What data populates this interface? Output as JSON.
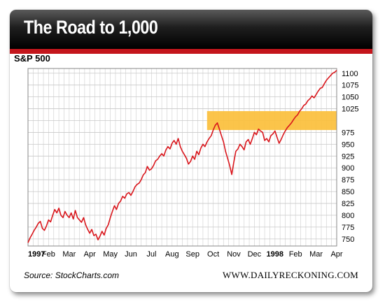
{
  "header": {
    "title": "The Road to 1,000"
  },
  "footer": {
    "source": "Source: StockCharts.com",
    "brand": "WWW.DAILYRECKONING.COM"
  },
  "colors": {
    "line": "#d9161c",
    "highlight": "#fbbf3b",
    "header_rule": "#c4161c"
  },
  "chart_data": {
    "type": "line",
    "title": "S&P 500",
    "xlabel": "",
    "ylabel": "",
    "ylim": [
      735,
      1110
    ],
    "grid": true,
    "x_tick_labels": [
      {
        "label": "1997",
        "t": 0,
        "bold": true
      },
      {
        "label": "Feb",
        "t": 1
      },
      {
        "label": "Mar",
        "t": 2
      },
      {
        "label": "Apr",
        "t": 3
      },
      {
        "label": "May",
        "t": 4
      },
      {
        "label": "Jun",
        "t": 5
      },
      {
        "label": "Jul",
        "t": 6
      },
      {
        "label": "Aug",
        "t": 7
      },
      {
        "label": "Sep",
        "t": 8
      },
      {
        "label": "Oct",
        "t": 9
      },
      {
        "label": "Nov",
        "t": 10
      },
      {
        "label": "Dec",
        "t": 11
      },
      {
        "label": "1998",
        "t": 12,
        "bold": true
      },
      {
        "label": "Feb",
        "t": 13
      },
      {
        "label": "Mar",
        "t": 14
      },
      {
        "label": "Apr",
        "t": 15
      }
    ],
    "y_ticks": [
      750,
      775,
      800,
      825,
      850,
      875,
      900,
      925,
      950,
      975,
      1000,
      1025,
      1050,
      1075,
      1100
    ],
    "y_tick_labels": [
      "750",
      "775",
      "800",
      "825",
      "850",
      "875",
      "900",
      "925",
      "950",
      "975",
      "",
      "1025",
      "1050",
      "1075",
      "1100"
    ],
    "highlight_band": {
      "t_start": 8.7,
      "y_low": 980,
      "y_high": 1020
    },
    "series": [
      {
        "points": [
          [
            0.0,
            742
          ],
          [
            0.1,
            752
          ],
          [
            0.2,
            760
          ],
          [
            0.3,
            768
          ],
          [
            0.4,
            775
          ],
          [
            0.5,
            783
          ],
          [
            0.6,
            787
          ],
          [
            0.7,
            772
          ],
          [
            0.8,
            768
          ],
          [
            0.9,
            778
          ],
          [
            1.0,
            790
          ],
          [
            1.1,
            786
          ],
          [
            1.2,
            800
          ],
          [
            1.3,
            812
          ],
          [
            1.4,
            805
          ],
          [
            1.5,
            815
          ],
          [
            1.6,
            800
          ],
          [
            1.7,
            795
          ],
          [
            1.8,
            808
          ],
          [
            1.9,
            800
          ],
          [
            2.0,
            795
          ],
          [
            2.1,
            805
          ],
          [
            2.2,
            792
          ],
          [
            2.3,
            810
          ],
          [
            2.4,
            795
          ],
          [
            2.5,
            790
          ],
          [
            2.6,
            785
          ],
          [
            2.7,
            795
          ],
          [
            2.8,
            780
          ],
          [
            2.9,
            770
          ],
          [
            3.0,
            762
          ],
          [
            3.1,
            770
          ],
          [
            3.2,
            757
          ],
          [
            3.3,
            760
          ],
          [
            3.4,
            748
          ],
          [
            3.5,
            756
          ],
          [
            3.6,
            766
          ],
          [
            3.7,
            758
          ],
          [
            3.8,
            772
          ],
          [
            3.9,
            780
          ],
          [
            4.0,
            795
          ],
          [
            4.1,
            808
          ],
          [
            4.2,
            820
          ],
          [
            4.3,
            812
          ],
          [
            4.4,
            825
          ],
          [
            4.5,
            830
          ],
          [
            4.6,
            840
          ],
          [
            4.7,
            836
          ],
          [
            4.8,
            845
          ],
          [
            4.9,
            848
          ],
          [
            5.0,
            842
          ],
          [
            5.1,
            850
          ],
          [
            5.2,
            860
          ],
          [
            5.3,
            865
          ],
          [
            5.4,
            868
          ],
          [
            5.5,
            875
          ],
          [
            5.6,
            885
          ],
          [
            5.7,
            890
          ],
          [
            5.8,
            903
          ],
          [
            5.9,
            895
          ],
          [
            6.0,
            898
          ],
          [
            6.1,
            905
          ],
          [
            6.2,
            915
          ],
          [
            6.3,
            918
          ],
          [
            6.4,
            925
          ],
          [
            6.5,
            930
          ],
          [
            6.6,
            925
          ],
          [
            6.7,
            938
          ],
          [
            6.8,
            945
          ],
          [
            6.9,
            940
          ],
          [
            7.0,
            952
          ],
          [
            7.1,
            958
          ],
          [
            7.2,
            950
          ],
          [
            7.3,
            962
          ],
          [
            7.4,
            945
          ],
          [
            7.5,
            935
          ],
          [
            7.6,
            928
          ],
          [
            7.7,
            920
          ],
          [
            7.8,
            908
          ],
          [
            7.9,
            914
          ],
          [
            8.0,
            925
          ],
          [
            8.1,
            918
          ],
          [
            8.2,
            935
          ],
          [
            8.3,
            928
          ],
          [
            8.4,
            942
          ],
          [
            8.5,
            950
          ],
          [
            8.6,
            945
          ],
          [
            8.7,
            955
          ],
          [
            8.8,
            962
          ],
          [
            8.9,
            968
          ],
          [
            9.0,
            980
          ],
          [
            9.1,
            990
          ],
          [
            9.2,
            995
          ],
          [
            9.3,
            982
          ],
          [
            9.4,
            968
          ],
          [
            9.5,
            955
          ],
          [
            9.6,
            935
          ],
          [
            9.7,
            920
          ],
          [
            9.8,
            905
          ],
          [
            9.9,
            886
          ],
          [
            10.0,
            912
          ],
          [
            10.1,
            935
          ],
          [
            10.2,
            940
          ],
          [
            10.3,
            950
          ],
          [
            10.4,
            945
          ],
          [
            10.5,
            938
          ],
          [
            10.6,
            955
          ],
          [
            10.7,
            960
          ],
          [
            10.8,
            950
          ],
          [
            10.9,
            962
          ],
          [
            11.0,
            975
          ],
          [
            11.1,
            970
          ],
          [
            11.2,
            982
          ],
          [
            11.3,
            978
          ],
          [
            11.4,
            975
          ],
          [
            11.5,
            958
          ],
          [
            11.6,
            962
          ],
          [
            11.7,
            955
          ],
          [
            11.8,
            968
          ],
          [
            11.9,
            972
          ],
          [
            12.0,
            978
          ],
          [
            12.1,
            965
          ],
          [
            12.2,
            952
          ],
          [
            12.3,
            960
          ],
          [
            12.4,
            970
          ],
          [
            12.5,
            978
          ],
          [
            12.6,
            985
          ],
          [
            12.7,
            990
          ],
          [
            12.8,
            995
          ],
          [
            12.9,
            1002
          ],
          [
            13.0,
            1008
          ],
          [
            13.1,
            1012
          ],
          [
            13.2,
            1020
          ],
          [
            13.3,
            1025
          ],
          [
            13.4,
            1032
          ],
          [
            13.5,
            1035
          ],
          [
            13.6,
            1042
          ],
          [
            13.7,
            1046
          ],
          [
            13.8,
            1052
          ],
          [
            13.9,
            1048
          ],
          [
            14.0,
            1055
          ],
          [
            14.1,
            1062
          ],
          [
            14.2,
            1068
          ],
          [
            14.3,
            1070
          ],
          [
            14.4,
            1078
          ],
          [
            14.5,
            1085
          ],
          [
            14.6,
            1090
          ],
          [
            14.7,
            1095
          ],
          [
            14.8,
            1100
          ],
          [
            14.9,
            1102
          ],
          [
            15.0,
            1106
          ]
        ]
      }
    ]
  }
}
